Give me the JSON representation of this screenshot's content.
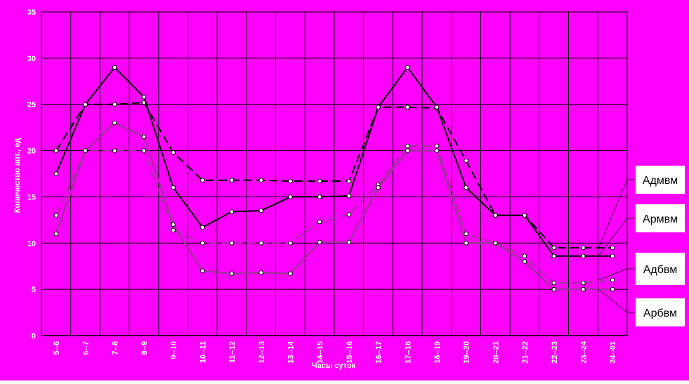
{
  "chart_data": {
    "type": "line",
    "x_label": "Часы суток",
    "y_label": "Количество авт., ед",
    "categories": [
      "5--6",
      "6--7",
      "7--8",
      "8--9",
      "9--10",
      "10--11",
      "11--12",
      "12--13",
      "13--14",
      "14--15",
      "15--16",
      "16--17",
      "17--18",
      "18--19",
      "19--20",
      "20--21",
      "21--22",
      "22--23",
      "23--24",
      "24--01"
    ],
    "series": [
      {
        "name": "Адмвм",
        "color": "#000000",
        "dashed": true,
        "width": 2,
        "values": [
          20,
          25,
          25,
          25.2,
          19.8,
          16.8,
          16.8,
          16.8,
          16.7,
          16.7,
          16.7,
          24.7,
          24.7,
          24.6,
          18.9,
          13,
          13,
          9.5,
          9.5,
          9.5
        ]
      },
      {
        "name": "Армвм",
        "color": "#000000",
        "dashed": false,
        "width": 2,
        "values": [
          17.5,
          25,
          29,
          25.8,
          16,
          11.7,
          13.4,
          13.5,
          15,
          15,
          15.1,
          24.7,
          29,
          24.7,
          16,
          13,
          13,
          8.6,
          8.6,
          8.6
        ]
      },
      {
        "name": "Адбвм",
        "color": "#a3309e",
        "dashed": true,
        "width": 2,
        "values": [
          13,
          20,
          20,
          20,
          11.4,
          10,
          10,
          10,
          10,
          12.3,
          13.1,
          16.3,
          20.5,
          20.5,
          11,
          10,
          8.6,
          5.7,
          5.7,
          6
        ]
      },
      {
        "name": "Арбвм",
        "color": "#a3309e",
        "dashed": false,
        "width": 2.5,
        "values": [
          11,
          20,
          23,
          21.5,
          12,
          7,
          6.7,
          6.8,
          6.7,
          10.1,
          10.1,
          16,
          20,
          20,
          10,
          10,
          8,
          5,
          5,
          5
        ]
      }
    ],
    "ylim": [
      0,
      35
    ],
    "yticks": [
      0,
      5,
      10,
      15,
      20,
      25,
      30,
      35
    ],
    "grid": true,
    "background": "#ff00ff"
  }
}
